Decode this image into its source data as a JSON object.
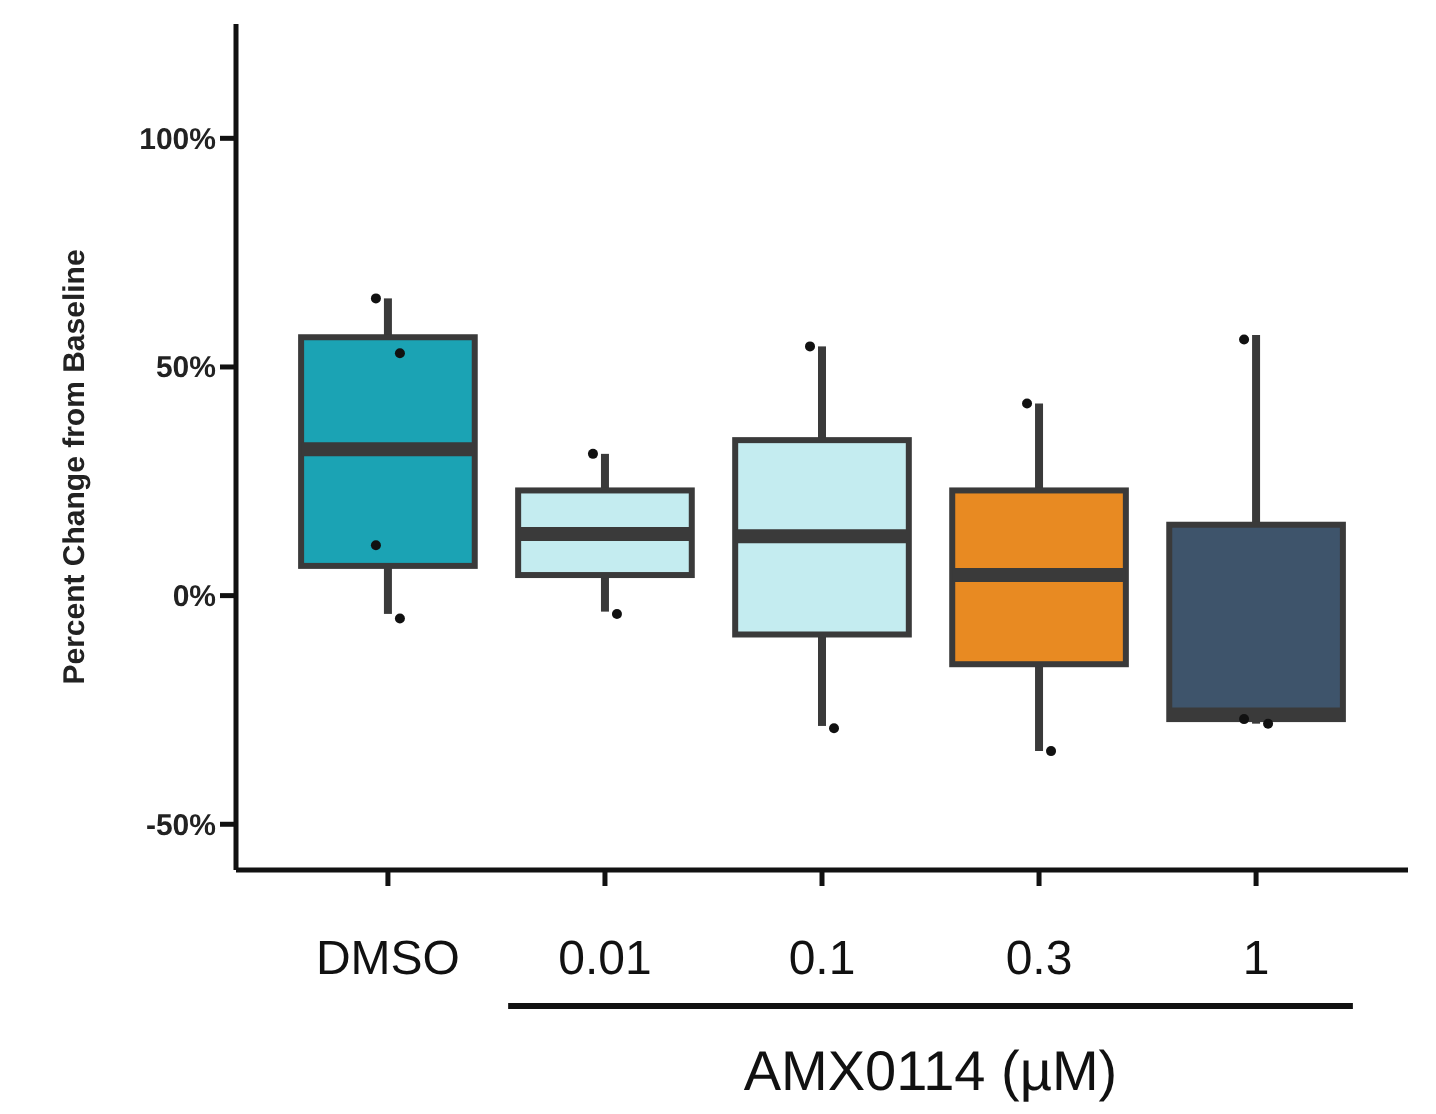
{
  "chart_data": {
    "type": "box",
    "ylabel": "Percent Change from Baseline",
    "xlabel": "AMX0114 (µM)",
    "categories": [
      "DMSO",
      "0.01",
      "0.1",
      "0.3",
      "1"
    ],
    "ylim": [
      -60,
      125
    ],
    "yticks": [
      {
        "value": -50,
        "label": "-50%"
      },
      {
        "value": 0,
        "label": "0%"
      },
      {
        "value": 50,
        "label": "50%"
      },
      {
        "value": 100,
        "label": "100%"
      }
    ],
    "grid": false,
    "series": [
      {
        "colors": [
          "#1ba3b4",
          "#c4ecf0",
          "#c4ecf0",
          "#e88a22",
          "#3e546b"
        ],
        "boxes": [
          {
            "low": -4,
            "q1": 6.5,
            "median": 32,
            "q3": 56.5,
            "high": 65
          },
          {
            "low": -3.5,
            "q1": 4.5,
            "median": 13.5,
            "q3": 23,
            "high": 31
          },
          {
            "low": -28.5,
            "q1": -8.5,
            "median": 13,
            "q3": 34,
            "high": 54.5
          },
          {
            "low": -34,
            "q1": -15,
            "median": 4.5,
            "q3": 23,
            "high": 42
          },
          {
            "low": -28,
            "q1": -27,
            "median": -26,
            "q3": 15.5,
            "high": 57
          }
        ]
      },
      {
        "type": "scatter",
        "color": "#111111",
        "marker": "circle",
        "x": [
          "DMSO",
          "DMSO",
          "DMSO",
          "DMSO",
          "0.01",
          "0.01",
          "0.1",
          "0.1",
          "0.3",
          "0.3",
          "1",
          "1",
          "1"
        ],
        "values": [
          65,
          53,
          11,
          -5,
          31,
          -4,
          54.5,
          -29,
          42,
          -34,
          56,
          -28,
          -27
        ]
      }
    ]
  }
}
